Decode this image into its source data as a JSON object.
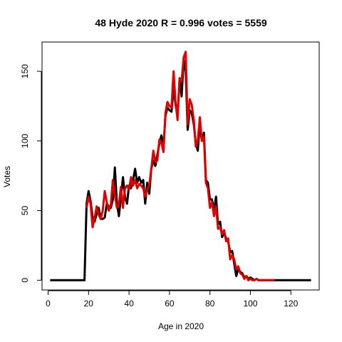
{
  "chart_data": {
    "type": "line",
    "title": "48 Hyde 2020 R = 0.996 votes = 5559",
    "xlabel": "Age in 2020",
    "ylabel": "Votes",
    "xlim": [
      -3,
      134
    ],
    "ylim": [
      -7,
      171
    ],
    "xticks": [
      0,
      20,
      40,
      60,
      80,
      100,
      120
    ],
    "yticks": [
      0,
      50,
      100,
      150
    ],
    "grid": false,
    "legend": "none",
    "series": [
      {
        "color": "#000000",
        "points": [
          [
            1,
            0
          ],
          [
            5,
            0
          ],
          [
            10,
            0
          ],
          [
            15,
            0
          ],
          [
            18,
            0
          ],
          [
            19,
            55
          ],
          [
            20,
            64
          ],
          [
            21,
            57
          ],
          [
            22,
            45
          ],
          [
            23,
            42
          ],
          [
            24,
            48
          ],
          [
            25,
            52
          ],
          [
            26,
            44
          ],
          [
            27,
            44
          ],
          [
            28,
            45
          ],
          [
            29,
            55
          ],
          [
            30,
            53
          ],
          [
            31,
            52
          ],
          [
            32,
            58
          ],
          [
            33,
            81
          ],
          [
            34,
            55
          ],
          [
            35,
            46
          ],
          [
            36,
            60
          ],
          [
            37,
            74
          ],
          [
            38,
            60
          ],
          [
            39,
            55
          ],
          [
            40,
            68
          ],
          [
            41,
            66
          ],
          [
            42,
            72
          ],
          [
            43,
            80
          ],
          [
            44,
            70
          ],
          [
            45,
            74
          ],
          [
            46,
            70
          ],
          [
            47,
            72
          ],
          [
            48,
            55
          ],
          [
            49,
            70
          ],
          [
            50,
            62
          ],
          [
            51,
            80
          ],
          [
            52,
            86
          ],
          [
            53,
            82
          ],
          [
            54,
            90
          ],
          [
            55,
            98
          ],
          [
            56,
            104
          ],
          [
            57,
            96
          ],
          [
            58,
            118
          ],
          [
            59,
            124
          ],
          [
            60,
            122
          ],
          [
            61,
            121
          ],
          [
            62,
            138
          ],
          [
            63,
            126
          ],
          [
            64,
            118
          ],
          [
            65,
            145
          ],
          [
            66,
            132
          ],
          [
            67,
            158
          ],
          [
            68,
            150
          ],
          [
            69,
            108
          ],
          [
            70,
            122
          ],
          [
            71,
            120
          ],
          [
            72,
            112
          ],
          [
            73,
            98
          ],
          [
            74,
            93
          ],
          [
            75,
            112
          ],
          [
            76,
            100
          ],
          [
            77,
            106
          ],
          [
            78,
            72
          ],
          [
            79,
            70
          ],
          [
            80,
            58
          ],
          [
            81,
            58
          ],
          [
            82,
            50
          ],
          [
            83,
            60
          ],
          [
            84,
            40
          ],
          [
            85,
            42
          ],
          [
            86,
            31
          ],
          [
            87,
            34
          ],
          [
            88,
            30
          ],
          [
            89,
            28
          ],
          [
            90,
            20
          ],
          [
            91,
            21
          ],
          [
            92,
            12
          ],
          [
            93,
            3
          ],
          [
            94,
            8
          ],
          [
            95,
            6
          ],
          [
            96,
            5
          ],
          [
            97,
            2
          ],
          [
            98,
            3
          ],
          [
            99,
            1
          ],
          [
            100,
            2
          ],
          [
            101,
            1
          ],
          [
            102,
            0
          ],
          [
            103,
            1
          ],
          [
            104,
            0
          ],
          [
            105,
            0
          ],
          [
            110,
            0
          ],
          [
            115,
            0
          ],
          [
            120,
            0
          ],
          [
            125,
            0
          ],
          [
            130,
            0
          ]
        ]
      },
      {
        "color": "#e00000",
        "points": [
          [
            19,
            52
          ],
          [
            20,
            60
          ],
          [
            21,
            55
          ],
          [
            22,
            38
          ],
          [
            23,
            45
          ],
          [
            24,
            53
          ],
          [
            25,
            47
          ],
          [
            26,
            44
          ],
          [
            27,
            50
          ],
          [
            28,
            64
          ],
          [
            29,
            56
          ],
          [
            30,
            50
          ],
          [
            31,
            54
          ],
          [
            32,
            72
          ],
          [
            33,
            61
          ],
          [
            34,
            52
          ],
          [
            35,
            55
          ],
          [
            36,
            67
          ],
          [
            37,
            52
          ],
          [
            38,
            66
          ],
          [
            39,
            68
          ],
          [
            40,
            65
          ],
          [
            41,
            74
          ],
          [
            42,
            68
          ],
          [
            43,
            72
          ],
          [
            44,
            66
          ],
          [
            45,
            69
          ],
          [
            46,
            68
          ],
          [
            47,
            66
          ],
          [
            48,
            60
          ],
          [
            49,
            65
          ],
          [
            50,
            68
          ],
          [
            51,
            80
          ],
          [
            52,
            93
          ],
          [
            53,
            85
          ],
          [
            54,
            86
          ],
          [
            55,
            101
          ],
          [
            56,
            99
          ],
          [
            57,
            92
          ],
          [
            58,
            120
          ],
          [
            59,
            128
          ],
          [
            60,
            125
          ],
          [
            61,
            124
          ],
          [
            62,
            150
          ],
          [
            63,
            128
          ],
          [
            64,
            115
          ],
          [
            65,
            145
          ],
          [
            66,
            143
          ],
          [
            67,
            160
          ],
          [
            68,
            164
          ],
          [
            69,
            112
          ],
          [
            70,
            130
          ],
          [
            71,
            126
          ],
          [
            72,
            115
          ],
          [
            73,
            96
          ],
          [
            74,
            100
          ],
          [
            75,
            117
          ],
          [
            76,
            100
          ],
          [
            77,
            103
          ],
          [
            78,
            70
          ],
          [
            79,
            66
          ],
          [
            80,
            52
          ],
          [
            81,
            56
          ],
          [
            82,
            46
          ],
          [
            83,
            53
          ],
          [
            84,
            37
          ],
          [
            85,
            38
          ],
          [
            86,
            33
          ],
          [
            87,
            36
          ],
          [
            88,
            28
          ],
          [
            89,
            30
          ],
          [
            90,
            15
          ],
          [
            91,
            18
          ],
          [
            92,
            15
          ],
          [
            93,
            8
          ],
          [
            94,
            10
          ],
          [
            95,
            5
          ],
          [
            96,
            4
          ],
          [
            97,
            1
          ],
          [
            98,
            3
          ],
          [
            99,
            0
          ],
          [
            100,
            1
          ],
          [
            101,
            0
          ],
          [
            102,
            0
          ],
          [
            103,
            1
          ],
          [
            104,
            0
          ],
          [
            105,
            0
          ],
          [
            110,
            0
          ],
          [
            112,
            0
          ]
        ]
      }
    ]
  }
}
